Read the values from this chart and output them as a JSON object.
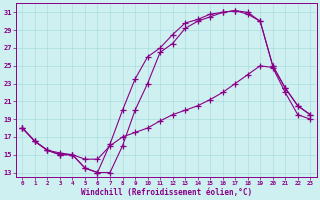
{
  "xlabel": "Windchill (Refroidissement éolien,°C)",
  "bg_color": "#cff0f0",
  "grid_color": "#aadddd",
  "line_color": "#880088",
  "xmin": -0.5,
  "xmax": 23.5,
  "ymin": 12.5,
  "ymax": 32.0,
  "yticks": [
    13,
    15,
    17,
    19,
    21,
    23,
    25,
    27,
    29,
    31
  ],
  "xticks": [
    0,
    1,
    2,
    3,
    4,
    5,
    6,
    7,
    8,
    9,
    10,
    11,
    12,
    13,
    14,
    15,
    16,
    17,
    18,
    19,
    20,
    21,
    22,
    23
  ],
  "line1_x": [
    0,
    1,
    2,
    3,
    4,
    5,
    6,
    7,
    8,
    9,
    10,
    11,
    12,
    13,
    14,
    15,
    16,
    17,
    18,
    19,
    20,
    21,
    22,
    23
  ],
  "line1_y": [
    18.0,
    16.5,
    15.5,
    15.0,
    15.0,
    13.5,
    13.0,
    13.0,
    16.0,
    20.0,
    23.0,
    26.5,
    27.5,
    29.2,
    30.0,
    30.5,
    31.0,
    31.2,
    31.0,
    30.0,
    25.0,
    22.5,
    20.5,
    19.5
  ],
  "line2_x": [
    0,
    1,
    2,
    3,
    4,
    5,
    6,
    7,
    8,
    9,
    10,
    11,
    12,
    13,
    14,
    15,
    16,
    17,
    18,
    19,
    20,
    21,
    22,
    23
  ],
  "line2_y": [
    18.0,
    16.5,
    15.5,
    15.0,
    15.0,
    13.5,
    13.0,
    16.2,
    20.0,
    23.5,
    26.0,
    27.0,
    28.5,
    29.8,
    30.2,
    30.8,
    31.0,
    31.2,
    30.8,
    30.0,
    25.0,
    22.5,
    20.5,
    19.5
  ],
  "line3_x": [
    0,
    1,
    2,
    3,
    4,
    5,
    6,
    7,
    8,
    9,
    10,
    11,
    12,
    13,
    14,
    15,
    16,
    17,
    18,
    19,
    20,
    21,
    22,
    23
  ],
  "line3_y": [
    18.0,
    16.5,
    15.5,
    15.2,
    15.0,
    14.5,
    14.5,
    16.0,
    17.0,
    17.5,
    18.0,
    18.8,
    19.5,
    20.0,
    20.5,
    21.2,
    22.0,
    23.0,
    24.0,
    25.0,
    24.8,
    22.0,
    19.5,
    19.0
  ]
}
